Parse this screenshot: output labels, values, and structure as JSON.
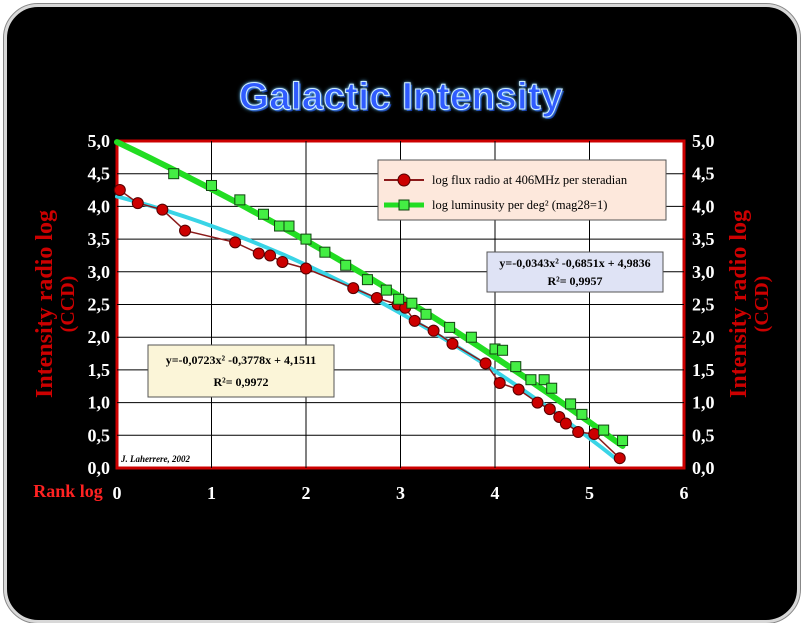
{
  "chart_data": {
    "type": "scatter",
    "title": "Galactic Intensity",
    "xlabel": "Rank log",
    "ylabel": "Intensity radio log",
    "ylabel_sub": "(CCD)",
    "xlim": [
      0,
      6
    ],
    "ylim": [
      0,
      5
    ],
    "x_ticks": [
      "0",
      "1",
      "2",
      "3",
      "4",
      "5",
      "6"
    ],
    "y_ticks": [
      "0,0",
      "0,5",
      "1,0",
      "1,5",
      "2,0",
      "2,5",
      "3,0",
      "3,5",
      "4,0",
      "4,5",
      "5,0"
    ],
    "grid": true,
    "legend_position": "top-right",
    "series": [
      {
        "name": "log flux radio at 406MHz per steradian",
        "color": "#cc0000",
        "marker": "circle",
        "points": [
          [
            0.03,
            4.25
          ],
          [
            0.22,
            4.05
          ],
          [
            0.48,
            3.95
          ],
          [
            0.72,
            3.63
          ],
          [
            1.25,
            3.45
          ],
          [
            1.5,
            3.28
          ],
          [
            1.62,
            3.25
          ],
          [
            1.75,
            3.15
          ],
          [
            2.0,
            3.05
          ],
          [
            2.5,
            2.75
          ],
          [
            2.75,
            2.6
          ],
          [
            2.97,
            2.5
          ],
          [
            3.05,
            2.45
          ],
          [
            3.15,
            2.25
          ],
          [
            3.35,
            2.1
          ],
          [
            3.55,
            1.9
          ],
          [
            3.9,
            1.6
          ],
          [
            4.05,
            1.3
          ],
          [
            4.25,
            1.2
          ],
          [
            4.45,
            1.0
          ],
          [
            4.58,
            0.9
          ],
          [
            4.68,
            0.78
          ],
          [
            4.75,
            0.68
          ],
          [
            4.88,
            0.55
          ],
          [
            5.05,
            0.52
          ],
          [
            5.32,
            0.15
          ]
        ]
      },
      {
        "name": "log luminusity per deg² (mag28=1)",
        "color": "#22dd22",
        "marker": "square",
        "points": [
          [
            0.6,
            4.5
          ],
          [
            1.0,
            4.32
          ],
          [
            1.3,
            4.1
          ],
          [
            1.55,
            3.88
          ],
          [
            1.72,
            3.7
          ],
          [
            1.82,
            3.7
          ],
          [
            2.0,
            3.5
          ],
          [
            2.2,
            3.3
          ],
          [
            2.42,
            3.1
          ],
          [
            2.65,
            2.88
          ],
          [
            2.85,
            2.72
          ],
          [
            2.98,
            2.58
          ],
          [
            3.12,
            2.52
          ],
          [
            3.27,
            2.35
          ],
          [
            3.52,
            2.15
          ],
          [
            3.75,
            2.0
          ],
          [
            4.0,
            1.82
          ],
          [
            4.08,
            1.8
          ],
          [
            4.22,
            1.55
          ],
          [
            4.38,
            1.35
          ],
          [
            4.52,
            1.35
          ],
          [
            4.6,
            1.22
          ],
          [
            4.8,
            0.98
          ],
          [
            4.92,
            0.82
          ],
          [
            5.15,
            0.58
          ],
          [
            5.35,
            0.42
          ]
        ]
      }
    ],
    "fits": [
      {
        "equation": "y=-0,0723x² -0,3778x + 4,1511",
        "r2": "R²= 0,9972",
        "a": -0.0723,
        "b": -0.3778,
        "c": 4.1511,
        "x_range": [
          0,
          5.3
        ],
        "color": "#39d4e6"
      },
      {
        "equation": "y=-0,0343x² -0,6851x + 4,9836",
        "r2": "R²= 0,9957",
        "a": -0.0343,
        "b": -0.6851,
        "c": 4.9836,
        "x_range": [
          0,
          5.35
        ],
        "color": "#22dd22"
      }
    ],
    "annotation": "J. Laherrere, 2002"
  }
}
